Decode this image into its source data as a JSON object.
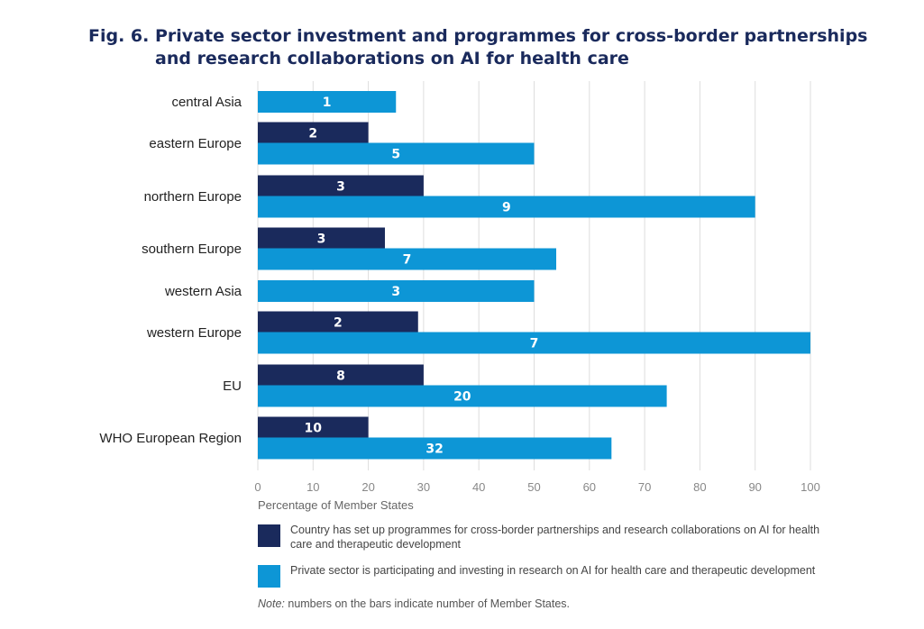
{
  "title": {
    "number": "Fig. 6.",
    "text": "Private sector investment and programmes for cross-border partnerships and research collaborations on AI for health care"
  },
  "colors": {
    "dark": "#1a2a5c",
    "light": "#0d96d6",
    "grid": "#dddddd",
    "axis_text": "#888888",
    "label_text": "#222222"
  },
  "chart_data": {
    "type": "bar",
    "orientation": "horizontal",
    "categories": [
      "central Asia",
      "eastern Europe",
      "northern Europe",
      "southern Europe",
      "western Asia",
      "western Europe",
      "EU",
      "WHO European Region"
    ],
    "series": [
      {
        "name": "Country has set up programmes for cross-border partnerships and research collaborations on AI for health care and therapeutic development",
        "values": [
          null,
          20,
          30,
          23,
          null,
          29,
          30,
          20
        ],
        "labels": [
          null,
          "2",
          "3",
          "3",
          null,
          "2",
          "8",
          "10"
        ]
      },
      {
        "name": "Private sector is participating and investing in research on AI for health care and therapeutic development",
        "values": [
          25,
          50,
          90,
          54,
          50,
          100,
          74,
          64
        ],
        "labels": [
          "1",
          "5",
          "9",
          "7",
          "3",
          "7",
          "20",
          "32"
        ]
      }
    ],
    "xlabel": "Percentage of Member States",
    "xlim": [
      0,
      100
    ],
    "xticks": [
      0,
      10,
      20,
      30,
      40,
      50,
      60,
      70,
      80,
      90,
      100
    ],
    "grid": true
  },
  "legend": [
    {
      "label": "Country has set up programmes for cross-border partnerships and research collaborations on AI for health care and therapeutic development"
    },
    {
      "label": "Private sector is participating and investing in research on AI for health care and therapeutic development"
    }
  ],
  "note": {
    "prefix": "Note:",
    "text": " numbers on the bars indicate number of Member States."
  }
}
